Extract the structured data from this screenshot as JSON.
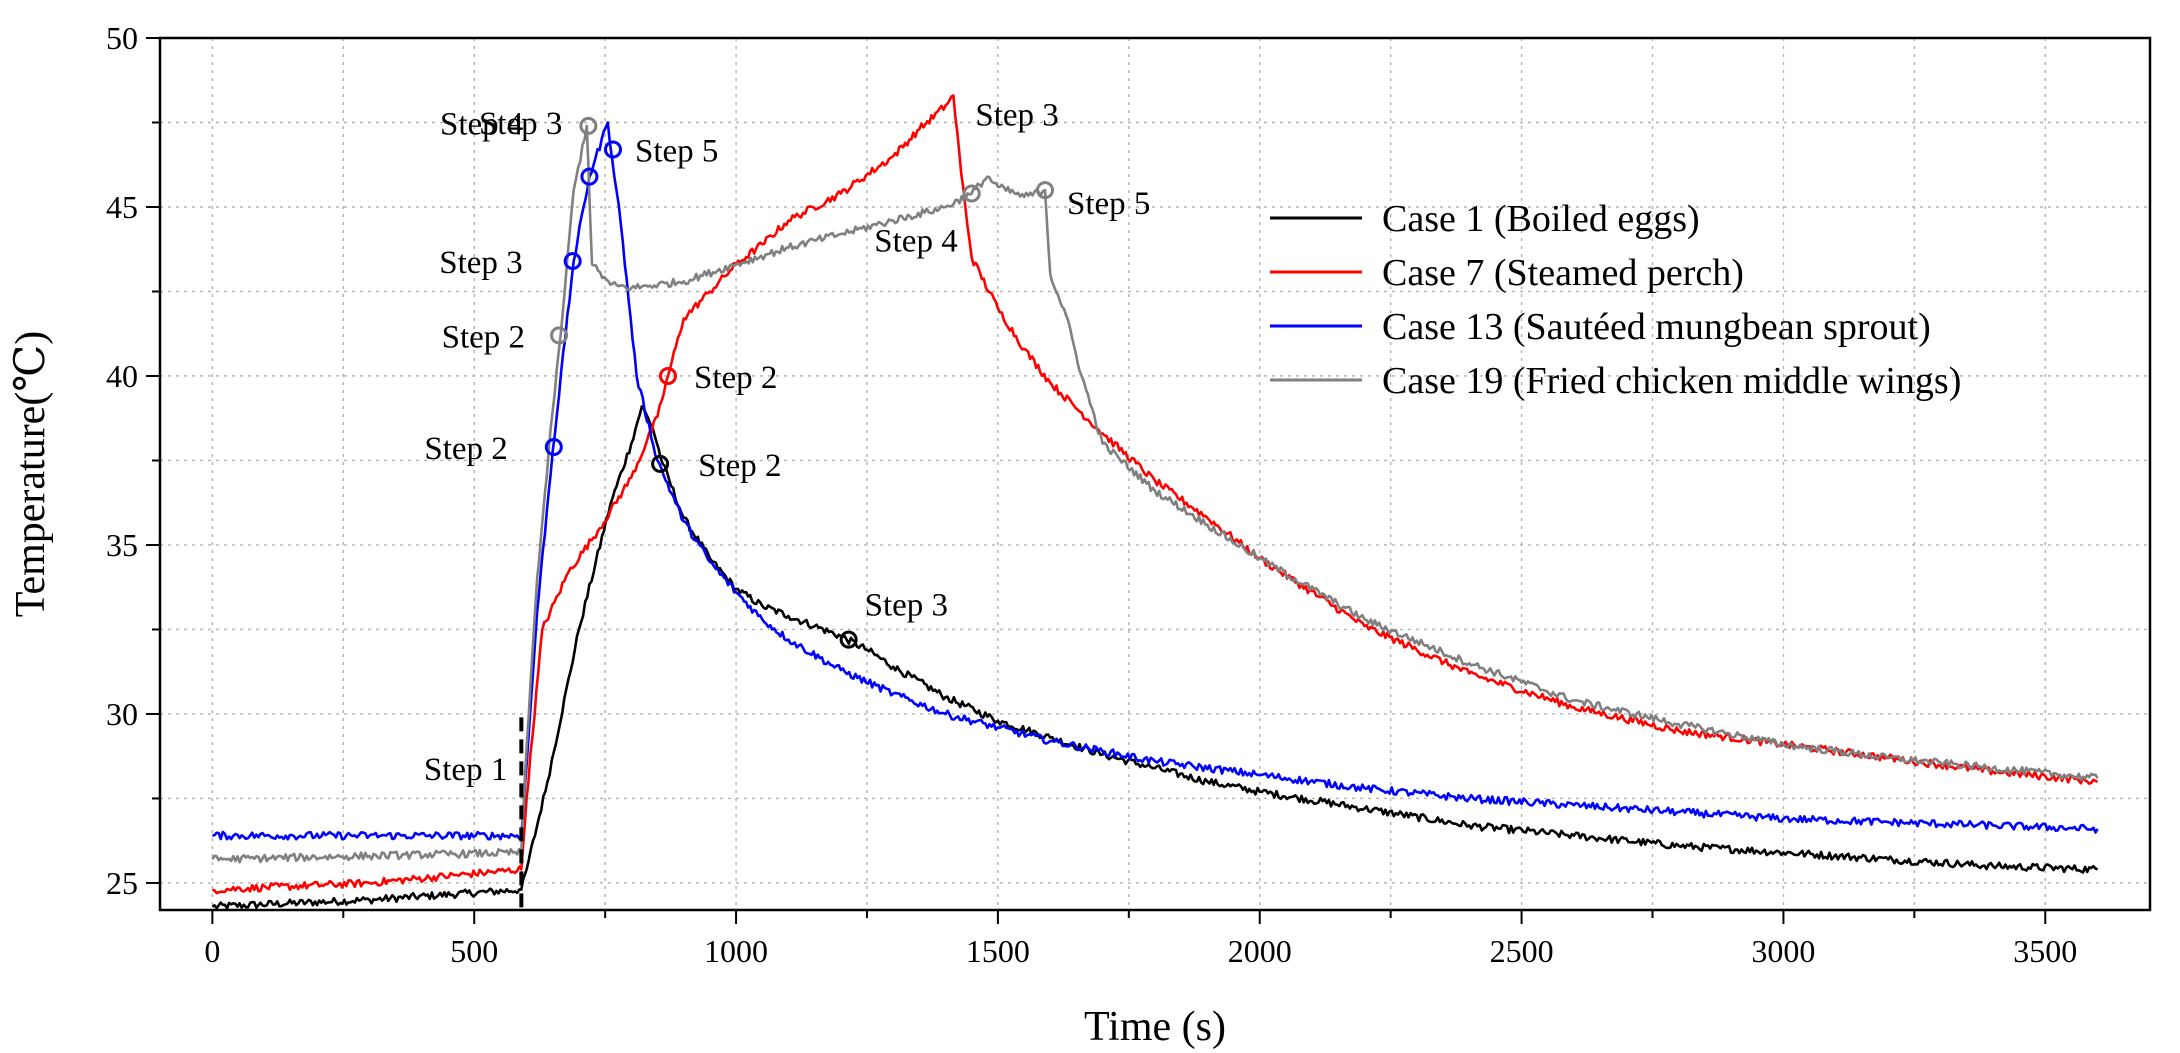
{
  "chart_data": {
    "type": "line",
    "title": "",
    "xlabel": "Time (s)",
    "ylabel": "Temperature(℃)",
    "xlim": [
      -100,
      3700
    ],
    "ylim": [
      24.2,
      50
    ],
    "xticks": [
      0,
      500,
      1000,
      1500,
      2000,
      2500,
      3000,
      3500
    ],
    "yticks": [
      25,
      30,
      35,
      40,
      45,
      50
    ],
    "xtick_labels": [
      "0",
      "500",
      "1000",
      "1500",
      "2000",
      "2500",
      "3000",
      "3500"
    ],
    "ytick_labels": [
      "25",
      "30",
      "35",
      "40",
      "45",
      "50"
    ],
    "grid": true,
    "legend_position": "top-right",
    "series": [
      {
        "name": "Case 1 (Boiled eggs)",
        "color": "#000000",
        "x": [
          0,
          300,
          590,
          600,
          640,
          700,
          760,
          800,
          820,
          840,
          860,
          900,
          950,
          1000,
          1050,
          1100,
          1150,
          1200,
          1250,
          1300,
          1400,
          1500,
          1600,
          1700,
          1800,
          1900,
          2000,
          2200,
          2400,
          2600,
          2800,
          3000,
          3200,
          3400,
          3600
        ],
        "y": [
          24.3,
          24.5,
          24.8,
          25.4,
          28.0,
          32.5,
          36.2,
          38.0,
          39.1,
          38.5,
          37.4,
          35.8,
          34.6,
          33.7,
          33.2,
          32.9,
          32.6,
          32.3,
          31.9,
          31.4,
          30.5,
          29.8,
          29.3,
          28.8,
          28.4,
          28.0,
          27.7,
          27.2,
          26.7,
          26.4,
          26.1,
          25.9,
          25.7,
          25.5,
          25.4
        ],
        "markers": [
          {
            "x": 855,
            "y": 37.4,
            "label": "Step 2"
          },
          {
            "x": 1215,
            "y": 32.2,
            "label": "Step 3"
          }
        ]
      },
      {
        "name": "Case 7 (Steamed perch)",
        "color": "#ff0000",
        "x": [
          0,
          300,
          590,
          600,
          630,
          680,
          740,
          800,
          850,
          870,
          900,
          950,
          1000,
          1050,
          1100,
          1200,
          1300,
          1350,
          1400,
          1415,
          1430,
          1450,
          1500,
          1550,
          1600,
          1700,
          1800,
          1900,
          2000,
          2200,
          2400,
          2600,
          2800,
          3000,
          3200,
          3400,
          3600
        ],
        "y": [
          24.8,
          25.0,
          25.4,
          27.5,
          32.5,
          34.2,
          35.5,
          37.0,
          38.8,
          40.0,
          41.7,
          42.5,
          43.3,
          43.9,
          44.6,
          45.4,
          46.5,
          47.3,
          48.0,
          48.3,
          46.0,
          43.5,
          42.0,
          40.8,
          39.8,
          38.3,
          36.9,
          35.8,
          34.6,
          32.6,
          31.2,
          30.2,
          29.5,
          29.1,
          28.7,
          28.3,
          28.0
        ],
        "markers": [
          {
            "x": 870,
            "y": 40.0,
            "label": "Step 2"
          }
        ],
        "labels": [
          {
            "x": 1415,
            "y": 48.3,
            "label": "Step 3"
          }
        ]
      },
      {
        "name": "Case 13 (Sautéed mungbean sprout)",
        "color": "#0000ff",
        "x": [
          0,
          300,
          590,
          600,
          620,
          650,
          690,
          720,
          755,
          780,
          810,
          850,
          900,
          950,
          1000,
          1050,
          1100,
          1200,
          1300,
          1400,
          1500,
          1600,
          1700,
          1800,
          2000,
          2200,
          2400,
          2600,
          2800,
          3000,
          3200,
          3400,
          3600
        ],
        "y": [
          26.4,
          26.4,
          26.4,
          28.5,
          33.0,
          37.8,
          43.4,
          45.9,
          47.5,
          44.5,
          40.0,
          37.5,
          35.7,
          34.5,
          33.6,
          32.8,
          32.2,
          31.3,
          30.6,
          30.0,
          29.6,
          29.2,
          28.9,
          28.6,
          28.2,
          27.8,
          27.5,
          27.3,
          27.1,
          26.9,
          26.8,
          26.7,
          26.6
        ],
        "markers": [
          {
            "x": 652,
            "y": 37.9,
            "label": "Step 2"
          },
          {
            "x": 688,
            "y": 43.4,
            "label": "Step 3"
          },
          {
            "x": 720,
            "y": 45.9,
            "label": "Step 4"
          },
          {
            "x": 765,
            "y": 46.7,
            "label": "Step 5"
          }
        ]
      },
      {
        "name": "Case 19 (Fried chicken middle wings)",
        "color": "#808080",
        "x": [
          0,
          300,
          590,
          600,
          620,
          650,
          665,
          690,
          715,
          718,
          725,
          760,
          800,
          900,
          1000,
          1100,
          1200,
          1300,
          1400,
          1450,
          1480,
          1500,
          1550,
          1590,
          1600,
          1630,
          1660,
          1700,
          1800,
          1900,
          2000,
          2200,
          2400,
          2600,
          2800,
          3000,
          3200,
          3400,
          3600
        ],
        "y": [
          25.7,
          25.8,
          25.9,
          29.0,
          34.0,
          39.0,
          41.2,
          45.5,
          47.4,
          46.2,
          43.3,
          42.7,
          42.6,
          42.8,
          43.3,
          43.8,
          44.2,
          44.6,
          45.0,
          45.4,
          45.9,
          45.6,
          45.3,
          45.5,
          43.0,
          41.8,
          40.0,
          38.0,
          36.6,
          35.6,
          34.6,
          32.8,
          31.5,
          30.4,
          29.7,
          29.1,
          28.7,
          28.4,
          28.1
        ],
        "markers": [
          {
            "x": 662,
            "y": 41.2,
            "label": "Step 2"
          },
          {
            "x": 718,
            "y": 47.4,
            "label": "Step 3"
          },
          {
            "x": 1450,
            "y": 45.4,
            "label": "Step 4"
          },
          {
            "x": 1590,
            "y": 45.5,
            "label": "Step 5"
          }
        ]
      }
    ],
    "annotations": [
      {
        "label": "Step 1",
        "x": 590,
        "style": "dashed vertical line",
        "color": "#000000"
      }
    ]
  }
}
